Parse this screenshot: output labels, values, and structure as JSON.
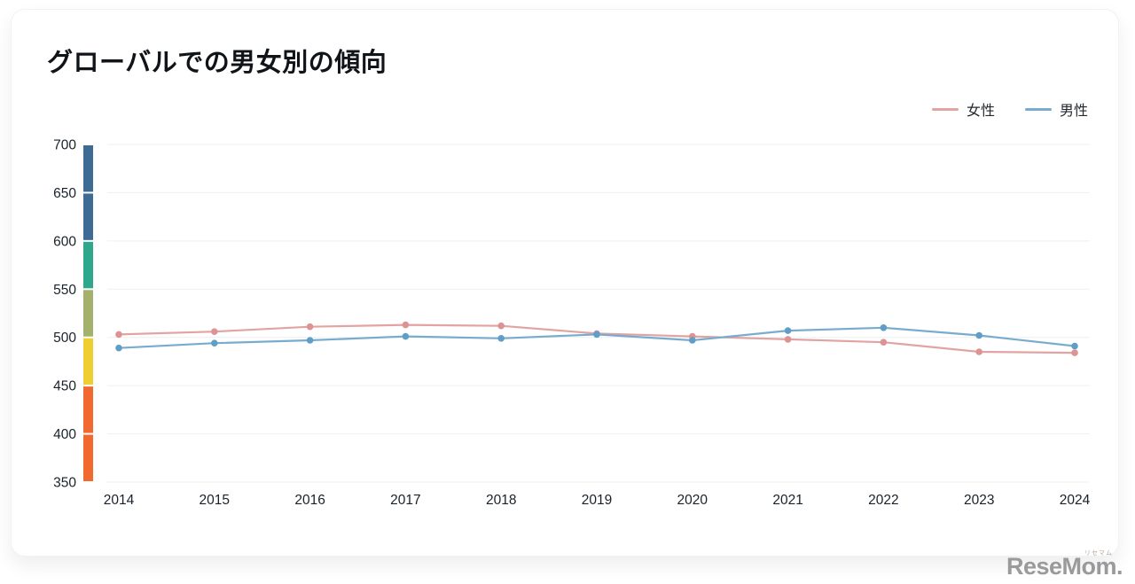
{
  "chart_data": {
    "type": "line",
    "title": "グローバルでの男女別の傾向",
    "x": [
      2014,
      2015,
      2016,
      2017,
      2018,
      2019,
      2020,
      2021,
      2022,
      2023,
      2024
    ],
    "series": [
      {
        "name": "女性",
        "color": "#e2a3a3",
        "dot_color": "#dd9393",
        "values": [
          503,
          506,
          511,
          513,
          512,
          504,
          501,
          498,
          495,
          485,
          484
        ]
      },
      {
        "name": "男性",
        "color": "#78acce",
        "dot_color": "#5f9fc6",
        "values": [
          489,
          494,
          497,
          501,
          499,
          503,
          497,
          507,
          510,
          502,
          491
        ]
      }
    ],
    "ylim": [
      350,
      700
    ],
    "yticks": [
      700,
      650,
      600,
      550,
      500,
      450,
      400,
      350
    ],
    "grid": "horizontal",
    "gridline_color": "#efefef",
    "tick_label_color": "#19222b",
    "legend_position": "top-right",
    "axis_bands": [
      {
        "from": 650,
        "to": 700,
        "color": "#3d6b94"
      },
      {
        "from": 600,
        "to": 650,
        "color": "#3d6b94"
      },
      {
        "from": 550,
        "to": 600,
        "color": "#2fa78c"
      },
      {
        "from": 500,
        "to": 550,
        "color": "#a4b16c"
      },
      {
        "from": 450,
        "to": 500,
        "color": "#efcf2f"
      },
      {
        "from": 400,
        "to": 450,
        "color": "#f2692f"
      },
      {
        "from": 350,
        "to": 400,
        "color": "#f2692f"
      }
    ]
  },
  "watermark": {
    "text": "ReseMom.",
    "ruby": "リセマム"
  }
}
